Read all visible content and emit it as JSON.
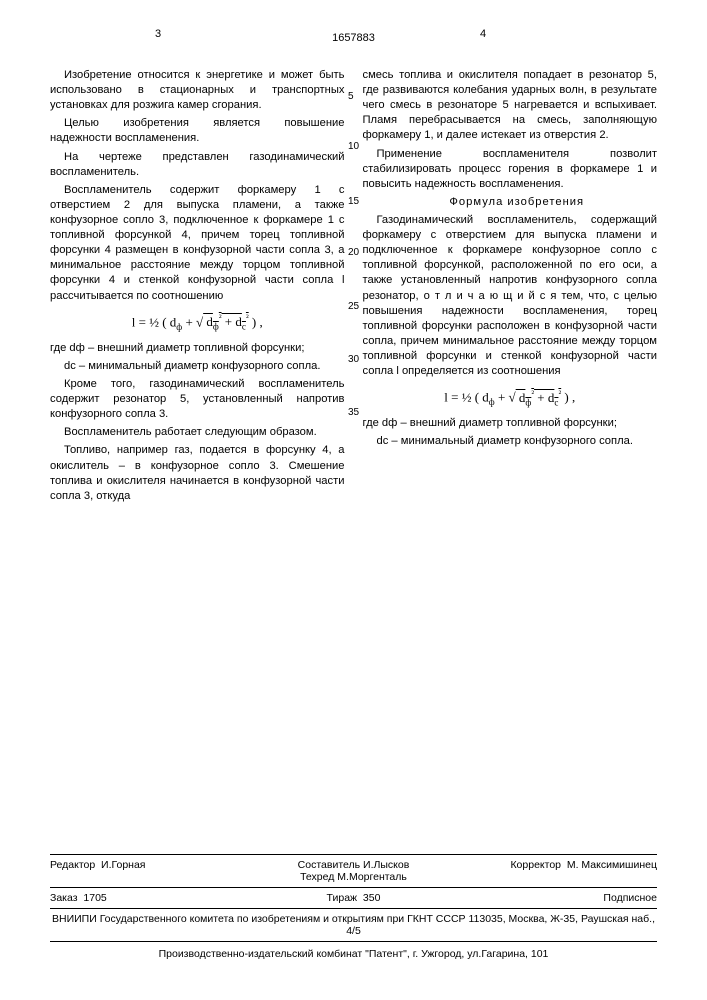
{
  "header": {
    "page_left": "3",
    "patent_number": "1657883",
    "page_right": "4"
  },
  "line_numbers": [
    "5",
    "10",
    "15",
    "20",
    "25",
    "30",
    "35"
  ],
  "line_number_offsets": [
    30,
    80,
    135,
    186,
    240,
    293,
    346
  ],
  "left_col": {
    "p1": "Изобретение относится к энергетике и может быть использовано в стационарных и транспортных установках для розжига камер сгорания.",
    "p2": "Целью изобретения является повышение надежности воспламенения.",
    "p3": "На чертеже представлен газодинамический воспламенитель.",
    "p4": "Воспламенитель содержит форкамеру 1 с отверстием 2 для выпуска пламени, а также конфузорное сопло 3, подключенное к форкамере 1 с топливной форсункой 4, причем торец топливной форсунки 4 размещен в конфузорной части сопла 3, а минимальное расстояние между торцом топливной форсунки 4 и стенкой конфузорной части сопла l рассчитывается по соотношению",
    "p5_where": "где dф – внешний диаметр топливной форсунки;",
    "p5_dc": "dс – минимальный диаметр конфузорного сопла.",
    "p6": "Кроме того, газодинамический воспламенитель содержит резонатор 5, установленный напротив конфузорного сопла 3.",
    "p7": "Воспламенитель работает следующим образом.",
    "p8": "Топливо, например газ, подается в форсунку 4, а окислитель – в конфузорное сопло 3. Смешение топлива и окислителя начинается в конфузорной части сопла 3, откуда"
  },
  "right_col": {
    "p1": "смесь топлива и окислителя попадает в резонатор 5, где развиваются колебания ударных волн, в результате чего смесь в резонаторе 5 нагревается и вспыхивает. Пламя перебрасывается на смесь, заполняющую форкамеру 1, и далее истекает из отверстия 2.",
    "p2": "Применение воспламенителя позволит стабилизировать процесс горения в форкамере 1 и повысить надежность воспламенения.",
    "claims_title": "Формула изобретения",
    "p3": "Газодинамический воспламенитель, содержащий форкамеру с отверстием для выпуска пламени и подключенное к форкамере конфузорное сопло с топливной форсункой, расположенной по его оси, а также установленный напротив конфузорного сопла резонатор, о т л и ч а ю щ и й с я  тем, что, с целью повышения надежности воспламенения, торец топливной форсунки расположен в конфузорной части сопла, причем минимальное расстояние между торцом топливной форсунки и стенкой конфузорной части сопла l определяется из соотношения",
    "p4_where": "где dф – внешний диаметр топливной форсунки;",
    "p4_dc": "dс – минимальный диаметр конфузорного сопла."
  },
  "formula": {
    "text_prefix": "l = ",
    "half": "½",
    "open": " ( d",
    "sub_phi": "ф",
    "plus": " + √",
    "under_root": " d",
    "sub_phi2": "ф",
    "sq": "²",
    "plus2": " + d",
    "sub_c": "с",
    "sq2": "²",
    "close": " ) ,"
  },
  "footer": {
    "editor_label": "Редактор",
    "editor_name": "И.Горная",
    "compiler_label": "Составитель",
    "compiler_name": "И.Лысков",
    "techred_label": "Техред",
    "techred_name": "М.Моргенталь",
    "corrector_label": "Корректор",
    "corrector_name": "М. Максимишинец",
    "order_label": "Заказ",
    "order_num": "1705",
    "tiraz_label": "Тираж",
    "tiraz_num": "350",
    "subscribed": "Подписное",
    "address": "ВНИИПИ Государственного комитета по изобретениям и открытиям при ГКНТ СССР 113035, Москва, Ж-35, Раушская наб., 4/5",
    "printer": "Производственно-издательский комбинат \"Патент\", г. Ужгород, ул.Гагарина, 101"
  }
}
